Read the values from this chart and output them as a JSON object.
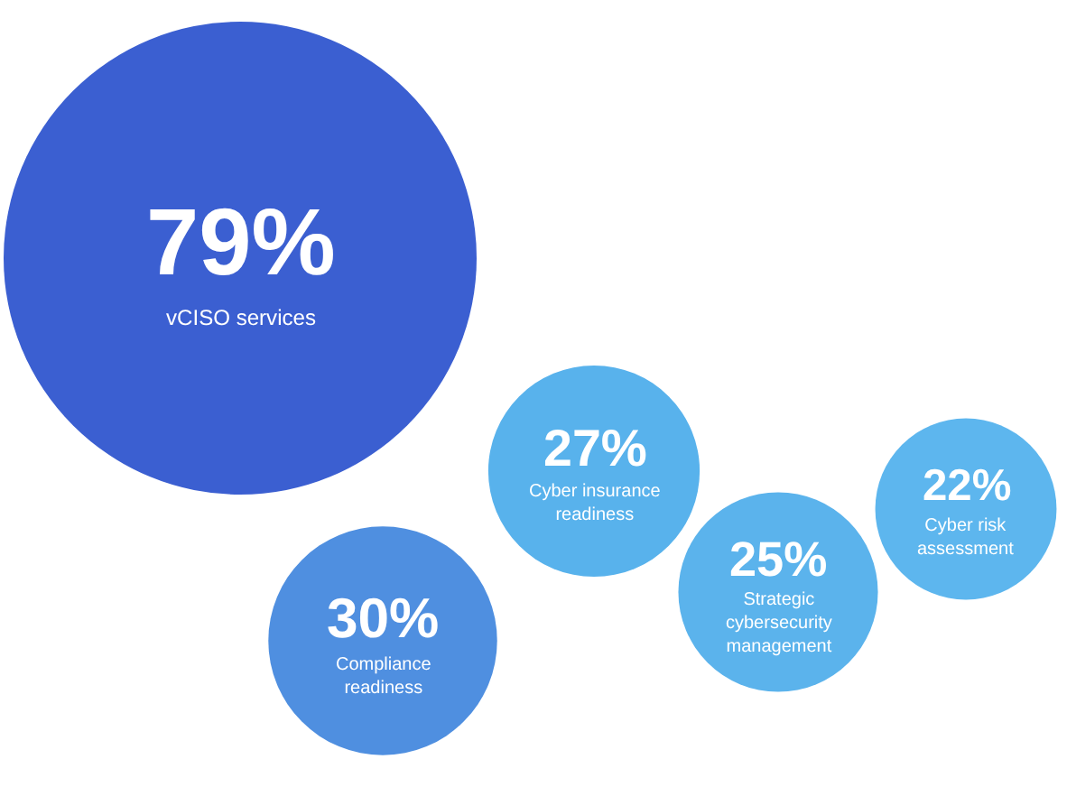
{
  "chart_data": {
    "type": "other",
    "categories": [
      "vCISO services",
      "Compliance readiness",
      "Cyber insurance readiness",
      "Strategic cybersecurity management",
      "Cyber risk assessment"
    ],
    "values": [
      79,
      30,
      27,
      25,
      22
    ],
    "value_labels": [
      "79%",
      "30%",
      "27%",
      "25%",
      "22%"
    ],
    "colors": [
      "#3b5fd1",
      "#4f8fe0",
      "#58b2ec",
      "#5bb3ec",
      "#5db6ee"
    ]
  }
}
